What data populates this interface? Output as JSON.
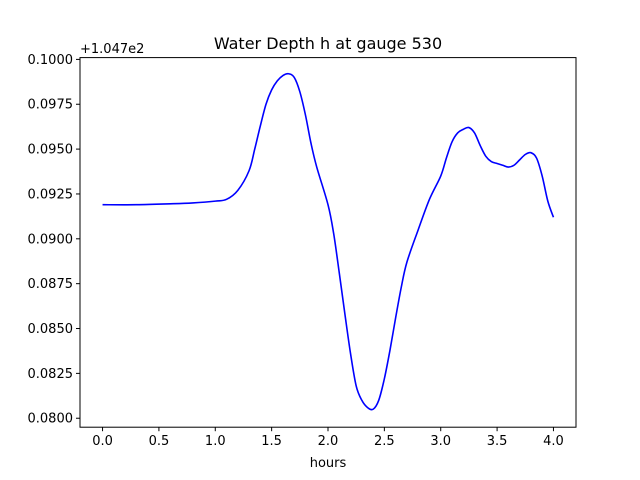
{
  "chart_data": {
    "type": "line",
    "title": "Water Depth h at gauge 530",
    "xlabel": "hours",
    "ylabel": "",
    "offset_label": "+1.047e2",
    "xlim": [
      -0.2,
      4.2
    ],
    "ylim": [
      0.0795,
      0.1001
    ],
    "x_ticks": [
      0.0,
      0.5,
      1.0,
      1.5,
      2.0,
      2.5,
      3.0,
      3.5,
      4.0
    ],
    "x_tick_labels": [
      "0.0",
      "0.5",
      "1.0",
      "1.5",
      "2.0",
      "2.5",
      "3.0",
      "3.5",
      "4.0"
    ],
    "y_ticks": [
      0.08,
      0.0825,
      0.085,
      0.0875,
      0.09,
      0.0925,
      0.095,
      0.0975,
      0.1
    ],
    "y_tick_labels": [
      "0.0800",
      "0.0825",
      "0.0850",
      "0.0875",
      "0.0900",
      "0.0925",
      "0.0950",
      "0.0975",
      "0.1000"
    ],
    "grid": false,
    "series": [
      {
        "color": "#0000ff",
        "x": [
          0.0,
          0.3,
          0.6,
          0.8,
          1.0,
          1.1,
          1.2,
          1.3,
          1.35,
          1.4,
          1.45,
          1.5,
          1.55,
          1.6,
          1.65,
          1.7,
          1.75,
          1.8,
          1.85,
          1.9,
          2.0,
          2.05,
          2.1,
          2.15,
          2.2,
          2.25,
          2.3,
          2.35,
          2.4,
          2.45,
          2.5,
          2.55,
          2.6,
          2.65,
          2.7,
          2.8,
          2.9,
          3.0,
          3.05,
          3.1,
          3.15,
          3.2,
          3.25,
          3.3,
          3.35,
          3.4,
          3.45,
          3.5,
          3.55,
          3.6,
          3.65,
          3.7,
          3.75,
          3.8,
          3.85,
          3.9,
          3.95,
          4.0
        ],
        "y": [
          0.0919,
          0.0919,
          0.09195,
          0.092,
          0.0921,
          0.0922,
          0.0927,
          0.0938,
          0.095,
          0.0963,
          0.0975,
          0.0983,
          0.0988,
          0.0991,
          0.0992,
          0.099,
          0.0982,
          0.0969,
          0.0953,
          0.094,
          0.0919,
          0.0903,
          0.0881,
          0.0858,
          0.0836,
          0.0818,
          0.081,
          0.0806,
          0.0805,
          0.081,
          0.0822,
          0.0838,
          0.0856,
          0.0873,
          0.0887,
          0.0905,
          0.0922,
          0.0935,
          0.0945,
          0.0954,
          0.0959,
          0.0961,
          0.0962,
          0.0959,
          0.0952,
          0.0946,
          0.0943,
          0.0942,
          0.0941,
          0.094,
          0.0941,
          0.0944,
          0.0947,
          0.0948,
          0.0945,
          0.0935,
          0.0921,
          0.0912
        ]
      }
    ]
  }
}
